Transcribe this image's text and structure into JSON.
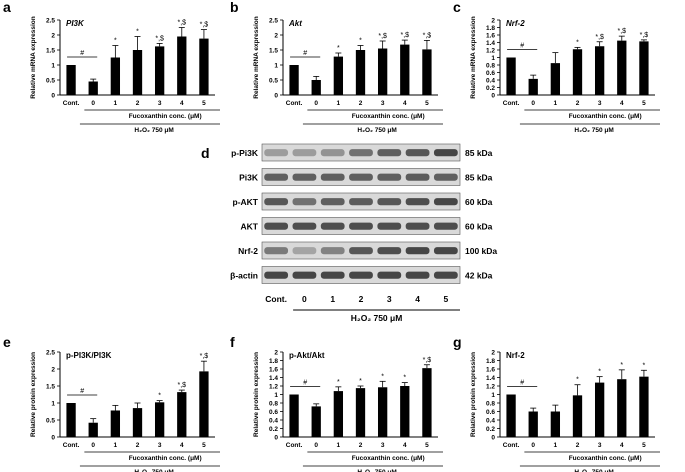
{
  "panel_letters": [
    "a",
    "b",
    "c",
    "d",
    "e",
    "f",
    "g"
  ],
  "common": {
    "cont_label": "Cont.",
    "group_label": "Fucoxanthin conc. (μM)",
    "h2o2_label": "H₂O₂ 750 μM"
  },
  "colors": {
    "bar": "#000000",
    "background": "#ffffff",
    "blot_band": "#2b2b2b"
  },
  "chart_data": [
    {
      "type": "bar",
      "panel": "a",
      "title": "PI3K",
      "title_italic": true,
      "ylabel": "Relative mRNA expression",
      "ylim": [
        0,
        2.5
      ],
      "yticks": [
        0,
        0.5,
        1,
        1.5,
        2,
        2.5
      ],
      "categories": [
        "Cont.",
        "0",
        "1",
        "2",
        "3",
        "4",
        "5"
      ],
      "values": [
        1.0,
        0.45,
        1.25,
        1.5,
        1.62,
        1.95,
        1.88
      ],
      "errors": [
        0.0,
        0.08,
        0.4,
        0.45,
        0.1,
        0.3,
        0.3
      ],
      "annotations": [
        "#",
        "",
        "*",
        "*",
        "*,$",
        "*,$",
        "*,$"
      ]
    },
    {
      "type": "bar",
      "panel": "b",
      "title": "Akt",
      "title_italic": true,
      "ylabel": "Relative mRNA expression",
      "ylim": [
        0,
        2.5
      ],
      "yticks": [
        0,
        0.5,
        1,
        1.5,
        2,
        2.5
      ],
      "categories": [
        "Cont.",
        "0",
        "1",
        "2",
        "3",
        "4",
        "5"
      ],
      "values": [
        1.0,
        0.5,
        1.28,
        1.5,
        1.55,
        1.68,
        1.52
      ],
      "errors": [
        0.0,
        0.12,
        0.12,
        0.15,
        0.25,
        0.15,
        0.3
      ],
      "annotations": [
        "#",
        "",
        "*",
        "*",
        "*,$",
        "*,$",
        "*,$"
      ]
    },
    {
      "type": "bar",
      "panel": "c",
      "title": "Nrf-2",
      "title_italic": true,
      "ylabel": "Relative mRNA expression",
      "ylim": [
        0,
        2
      ],
      "yticks": [
        0,
        0.2,
        0.4,
        0.6,
        0.8,
        1,
        1.2,
        1.4,
        1.6,
        1.8,
        2
      ],
      "categories": [
        "Cont.",
        "0",
        "1",
        "2",
        "3",
        "4",
        "5"
      ],
      "values": [
        1.0,
        0.43,
        0.85,
        1.22,
        1.3,
        1.45,
        1.43
      ],
      "errors": [
        0.0,
        0.1,
        0.28,
        0.05,
        0.12,
        0.12,
        0.04
      ],
      "annotations": [
        "#",
        "",
        "",
        "*",
        "*,$",
        "*,$",
        "*,$"
      ]
    },
    {
      "type": "bar",
      "panel": "e",
      "title": "p-PI3K/PI3K",
      "title_italic": false,
      "ylabel": "Relative protein expression",
      "ylim": [
        0,
        2.5
      ],
      "yticks": [
        0,
        0.5,
        1,
        1.5,
        2,
        2.5
      ],
      "categories": [
        "Cont.",
        "0",
        "1",
        "2",
        "3",
        "4",
        "5"
      ],
      "values": [
        1.0,
        0.42,
        0.78,
        0.85,
        1.02,
        1.32,
        1.93
      ],
      "errors": [
        0.0,
        0.12,
        0.15,
        0.15,
        0.05,
        0.06,
        0.3
      ],
      "annotations": [
        "#",
        "",
        "",
        "",
        "*",
        "*,$",
        "*,$"
      ]
    },
    {
      "type": "bar",
      "panel": "f",
      "title": "p-Akt/Akt",
      "title_italic": false,
      "ylabel": "Relative protein expression",
      "ylim": [
        0,
        2
      ],
      "yticks": [
        0,
        0.2,
        0.4,
        0.6,
        0.8,
        1,
        1.2,
        1.4,
        1.6,
        1.8,
        2
      ],
      "categories": [
        "Cont.",
        "0",
        "1",
        "2",
        "3",
        "4",
        "5"
      ],
      "values": [
        1.0,
        0.72,
        1.08,
        1.15,
        1.17,
        1.2,
        1.62
      ],
      "errors": [
        0.0,
        0.06,
        0.1,
        0.05,
        0.14,
        0.08,
        0.08
      ],
      "annotations": [
        "#",
        "",
        "*",
        "*",
        "*",
        "*",
        "*,$"
      ]
    },
    {
      "type": "bar",
      "panel": "g",
      "title": "Nrf-2",
      "title_italic": false,
      "ylabel": "Relative protein expression",
      "ylim": [
        0,
        2
      ],
      "yticks": [
        0,
        0.2,
        0.4,
        0.6,
        0.8,
        1,
        1.2,
        1.4,
        1.6,
        1.8,
        2
      ],
      "categories": [
        "Cont.",
        "0",
        "1",
        "2",
        "3",
        "4",
        "5"
      ],
      "values": [
        1.0,
        0.6,
        0.6,
        0.98,
        1.28,
        1.36,
        1.42
      ],
      "errors": [
        0.0,
        0.08,
        0.15,
        0.25,
        0.14,
        0.22,
        0.15
      ],
      "annotations": [
        "#",
        "",
        "",
        "*",
        "*",
        "*",
        "*"
      ]
    }
  ],
  "western_blot": {
    "panel": "d",
    "rows": [
      {
        "label": "p-Pi3K",
        "kda": "85 kDa",
        "intensity": [
          0.35,
          0.35,
          0.4,
          0.6,
          0.7,
          0.75,
          0.85
        ]
      },
      {
        "label": "Pi3K",
        "kda": "85 kDa",
        "intensity": [
          0.7,
          0.7,
          0.7,
          0.7,
          0.7,
          0.72,
          0.7
        ]
      },
      {
        "label": "p-AKT",
        "kda": "60 kDa",
        "intensity": [
          0.75,
          0.6,
          0.7,
          0.72,
          0.75,
          0.8,
          0.85
        ]
      },
      {
        "label": "AKT",
        "kda": "60 kDa",
        "intensity": [
          0.8,
          0.8,
          0.8,
          0.8,
          0.8,
          0.8,
          0.8
        ]
      },
      {
        "label": "Nrf-2",
        "kda": "100 kDa",
        "intensity": [
          0.55,
          0.3,
          0.5,
          0.75,
          0.8,
          0.85,
          0.85
        ]
      },
      {
        "label": "β-actin",
        "kda": "42 kDa",
        "intensity": [
          0.85,
          0.85,
          0.85,
          0.85,
          0.85,
          0.85,
          0.85
        ]
      }
    ],
    "lanes": [
      "Cont.",
      "0",
      "1",
      "2",
      "3",
      "4",
      "5"
    ],
    "h2o2_label": "H₂O₂ 750 μM"
  }
}
